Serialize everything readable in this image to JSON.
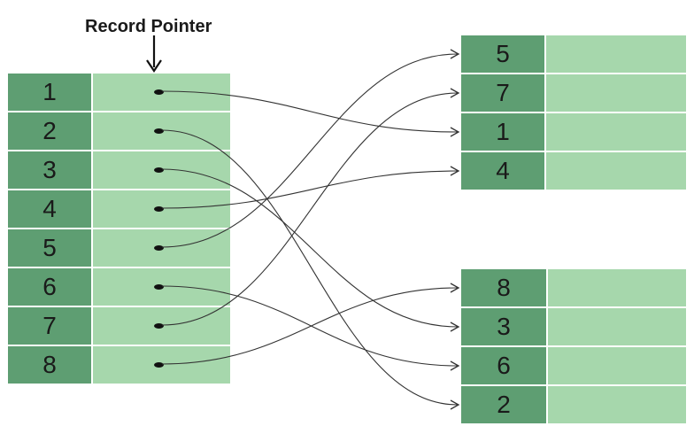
{
  "title": "Record Pointer",
  "index_keys": [
    "1",
    "2",
    "3",
    "4",
    "5",
    "6",
    "7",
    "8"
  ],
  "block_a_keys": [
    "5",
    "7",
    "1",
    "4"
  ],
  "block_b_keys": [
    "8",
    "3",
    "6",
    "2"
  ],
  "colors": {
    "key_cell": "#5e9e72",
    "value_cell": "#a6d7ac",
    "line": "#333333"
  }
}
